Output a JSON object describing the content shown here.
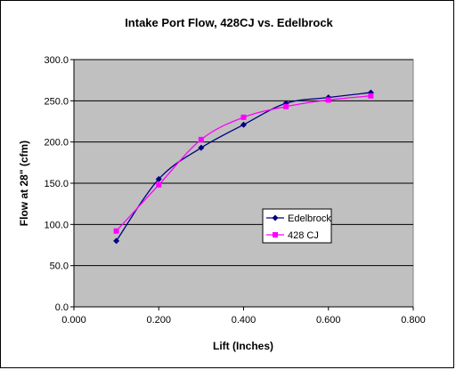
{
  "chart_data": {
    "type": "line",
    "title": "Intake Port Flow, 428CJ vs. Edelbrock",
    "xlabel": "Lift (Inches)",
    "ylabel": "Flow at 28\" (cfm)",
    "xlim": [
      0,
      0.8
    ],
    "ylim": [
      0,
      300
    ],
    "x_ticks": [
      "0.000",
      "0.200",
      "0.400",
      "0.600",
      "0.800"
    ],
    "y_ticks": [
      "0.0",
      "50.0",
      "100.0",
      "150.0",
      "200.0",
      "250.0",
      "300.0"
    ],
    "grid": "horizontal",
    "legend_position": "right",
    "plot_background": "#c0c0c0",
    "series": [
      {
        "name": "Edelbrock",
        "color": "#000080",
        "marker": "diamond",
        "x": [
          0.1,
          0.2,
          0.3,
          0.4,
          0.5,
          0.6,
          0.7
        ],
        "y": [
          80,
          155,
          193,
          221,
          247,
          254,
          260
        ]
      },
      {
        "name": "428 CJ",
        "color": "#ff00ff",
        "marker": "square",
        "x": [
          0.1,
          0.2,
          0.3,
          0.4,
          0.5,
          0.6,
          0.7
        ],
        "y": [
          92,
          148,
          203,
          230,
          243,
          251,
          256
        ]
      }
    ]
  }
}
